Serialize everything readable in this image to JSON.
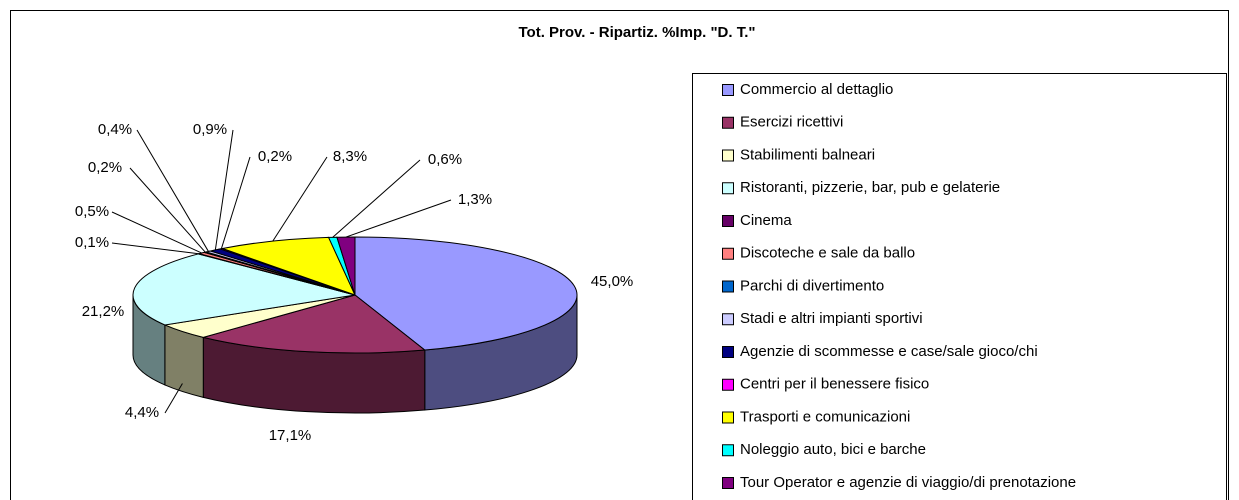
{
  "chart_data": {
    "type": "pie",
    "title": "Tot. Prov. - Ripartiz. %Imp. \"D. T.\"",
    "categories": [
      "Commercio al dettaglio",
      "Esercizi ricettivi",
      "Stabilimenti balneari",
      "Ristoranti, pizzerie, bar, pub e gelaterie",
      "Cinema",
      "Discoteche e sale da ballo",
      "Parchi di divertimento",
      "Stadi e altri impianti sportivi",
      "Agenzie di scommesse e case/sale gioco/chi",
      "Centri per il benessere fisico",
      "Trasporti e comunicazioni",
      "Noleggio auto, bici e barche",
      "Tour Operator e agenzie di viaggio/di prenotazione"
    ],
    "values": [
      45.0,
      17.1,
      4.4,
      21.2,
      0.1,
      0.5,
      0.2,
      0.4,
      0.9,
      0.2,
      8.3,
      0.6,
      1.3
    ],
    "value_labels": [
      "45,0%",
      "17,1%",
      "4,4%",
      "21,2%",
      "0,1%",
      "0,5%",
      "0,2%",
      "0,4%",
      "0,9%",
      "0,2%",
      "8,3%",
      "0,6%",
      "1,3%"
    ],
    "colors": [
      "#9999ff",
      "#993366",
      "#ffffcc",
      "#ccffff",
      "#660066",
      "#ff8080",
      "#0066cc",
      "#ccccff",
      "#000080",
      "#ff00ff",
      "#ffff00",
      "#00ffff",
      "#800080"
    ],
    "legend": "right"
  }
}
